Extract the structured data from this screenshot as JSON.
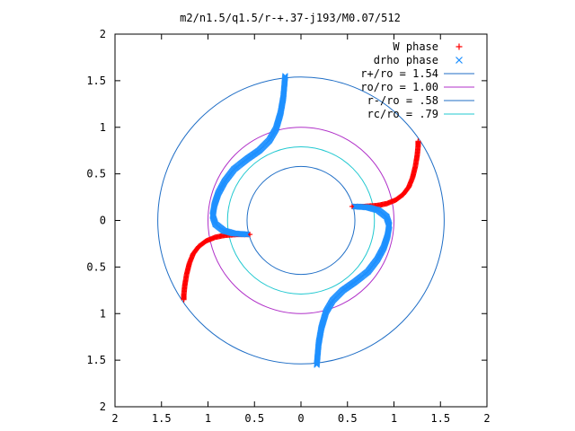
{
  "chart_data": {
    "type": "scatter",
    "title": "m2/n1.5/q1.5/r-+.37-j193/M0.07/512",
    "xlim": [
      -2,
      2
    ],
    "ylim": [
      -2,
      2
    ],
    "x_tick_labels": [
      "2",
      "1.5",
      "1",
      "0.5",
      "0",
      "0.5",
      "1",
      "1.5",
      "2"
    ],
    "y_tick_labels": [
      "2",
      "1.5",
      "1",
      "0.5",
      "0",
      "0.5",
      "1",
      "1.5",
      "2"
    ],
    "grid": false,
    "legend_position": "top-right",
    "circles": [
      {
        "label": "r+/ro = 1.54",
        "radius": 1.54,
        "color": "#1f6ec6"
      },
      {
        "label": "ro/ro = 1.00",
        "radius": 1.0,
        "color": "#b030c8"
      },
      {
        "label": "r-/ro = .58",
        "radius": 0.58,
        "color": "#1f6ec6"
      },
      {
        "label": "rc/ro = .79",
        "radius": 0.79,
        "color": "#20c8d0"
      }
    ],
    "series": [
      {
        "name": "W phase",
        "marker": "plus",
        "color": "#ff0000",
        "arms": [
          [
            [
              0.55,
              0.15
            ],
            [
              0.68,
              0.15
            ],
            [
              0.82,
              0.16
            ],
            [
              0.92,
              0.18
            ],
            [
              1.02,
              0.22
            ],
            [
              1.1,
              0.28
            ],
            [
              1.16,
              0.36
            ],
            [
              1.2,
              0.46
            ],
            [
              1.23,
              0.58
            ],
            [
              1.25,
              0.7
            ],
            [
              1.26,
              0.8
            ],
            [
              1.26,
              0.85
            ]
          ],
          [
            [
              -0.55,
              -0.15
            ],
            [
              -0.68,
              -0.15
            ],
            [
              -0.82,
              -0.16
            ],
            [
              -0.92,
              -0.18
            ],
            [
              -1.02,
              -0.22
            ],
            [
              -1.1,
              -0.28
            ],
            [
              -1.16,
              -0.36
            ],
            [
              -1.2,
              -0.46
            ],
            [
              -1.23,
              -0.58
            ],
            [
              -1.25,
              -0.7
            ],
            [
              -1.26,
              -0.8
            ],
            [
              -1.26,
              -0.85
            ]
          ]
        ]
      },
      {
        "name": "drho phase",
        "marker": "cross",
        "color": "#1e90ff",
        "arms": [
          [
            [
              -0.58,
              -0.15
            ],
            [
              -0.72,
              -0.14
            ],
            [
              -0.83,
              -0.11
            ],
            [
              -0.92,
              -0.04
            ],
            [
              -0.95,
              0.05
            ],
            [
              -0.93,
              0.17
            ],
            [
              -0.89,
              0.29
            ],
            [
              -0.82,
              0.42
            ],
            [
              -0.72,
              0.55
            ],
            [
              -0.58,
              0.66
            ],
            [
              -0.45,
              0.75
            ],
            [
              -0.34,
              0.86
            ],
            [
              -0.27,
              0.98
            ],
            [
              -0.22,
              1.15
            ],
            [
              -0.19,
              1.32
            ],
            [
              -0.17,
              1.55
            ]
          ],
          [
            [
              0.58,
              0.15
            ],
            [
              0.72,
              0.14
            ],
            [
              0.83,
              0.11
            ],
            [
              0.92,
              0.04
            ],
            [
              0.95,
              -0.05
            ],
            [
              0.93,
              -0.17
            ],
            [
              0.89,
              -0.29
            ],
            [
              0.82,
              -0.42
            ],
            [
              0.72,
              -0.55
            ],
            [
              0.58,
              -0.66
            ],
            [
              0.45,
              -0.75
            ],
            [
              0.34,
              -0.86
            ],
            [
              0.27,
              -0.98
            ],
            [
              0.22,
              -1.15
            ],
            [
              0.19,
              -1.32
            ],
            [
              0.17,
              -1.55
            ]
          ]
        ]
      }
    ]
  }
}
